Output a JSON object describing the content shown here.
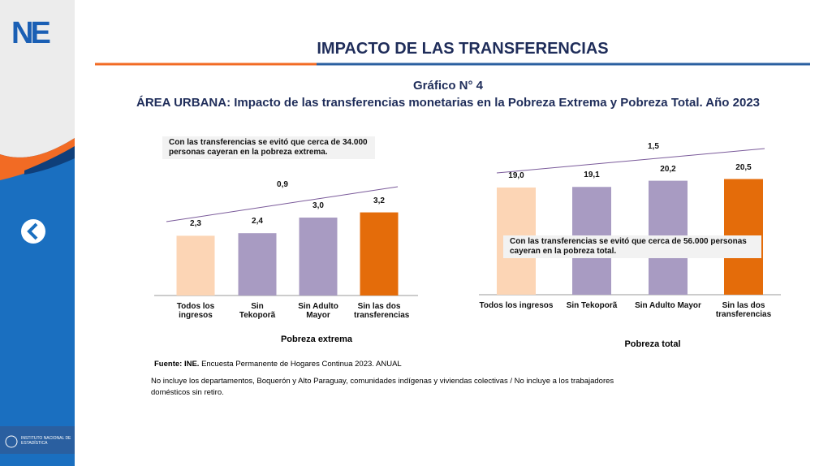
{
  "header": {
    "title": "IMPACTO DE LAS TRANSFERENCIAS",
    "chart_number": "Gráfico N° 4",
    "subtitle": "ÁREA URBANA: Impacto de las transferencias monetarias en la Pobreza Extrema y Pobreza Total. Año 2023"
  },
  "sidebar": {
    "logo": "NE",
    "institution": "INSTITUTO NACIONAL DE ESTADÍSTICA"
  },
  "chart_data": [
    {
      "type": "bar",
      "title": "Pobreza extrema",
      "categories": [
        "Todos los ingresos",
        "Sin Tekoporã",
        "Sin Adulto Mayor",
        "Sin las dos transferencias"
      ],
      "values": [
        2.3,
        2.4,
        3.0,
        3.2
      ],
      "value_labels": [
        "2,3",
        "2,4",
        "3,0",
        "3,2"
      ],
      "colors": [
        "#fcd5b5",
        "#a89bc2",
        "#a89bc2",
        "#e46c0a"
      ],
      "trend_label": "0,9",
      "annotation": "Con las transferencias se evitó que cerca de 34.000 personas cayeran en la pobreza extrema."
    },
    {
      "type": "bar",
      "title": "Pobreza total",
      "categories": [
        "Todos los ingresos",
        "Sin Tekoporã",
        "Sin Adulto Mayor",
        "Sin las dos transferencias"
      ],
      "values": [
        19.0,
        19.1,
        20.2,
        20.5
      ],
      "value_labels": [
        "19,0",
        "19,1",
        "20,2",
        "20,5"
      ],
      "colors": [
        "#fcd5b5",
        "#a89bc2",
        "#a89bc2",
        "#e46c0a"
      ],
      "trend_label": "1,5",
      "annotation": "Con las transferencias se evitó que cerca de 56.000 personas cayeran en la pobreza total."
    }
  ],
  "footer": {
    "source_label": "Fuente: INE.",
    "source": "Encuesta Permanente de Hogares Continua 2023. ANUAL",
    "note": "No incluye los departamentos, Boquerón y Alto Paraguay, comunidades indígenas y viviendas colectivas / No incluye a los trabajadores domésticos sin retiro."
  }
}
